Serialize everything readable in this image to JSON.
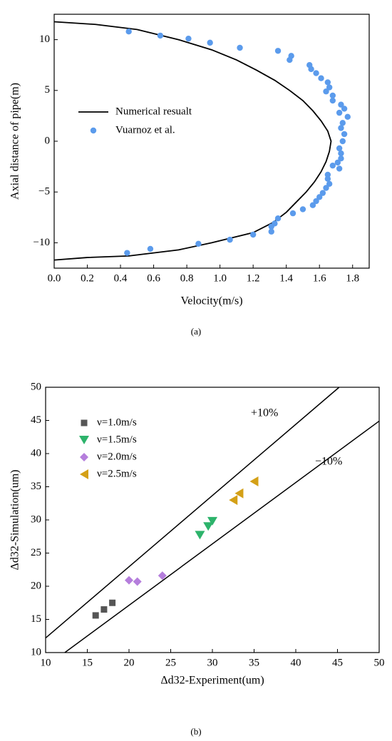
{
  "chart_data": [
    {
      "type": "scatter",
      "xlabel": "Velocity(m/s)",
      "ylabel": "Axial distance of pipe(m)",
      "caption": "(a)",
      "xlim": [
        0,
        1.9
      ],
      "ylim": [
        -12.5,
        12.5
      ],
      "xticks": [
        {
          "value": 0,
          "label": "0.0"
        },
        0.2,
        0.4,
        0.6,
        0.8,
        {
          "value": 1,
          "label": "1.0"
        },
        1.2,
        1.4,
        1.6,
        1.8
      ],
      "yticks": [
        {
          "value": -10,
          "label": "−10"
        },
        {
          "value": -5,
          "label": "−5"
        },
        0,
        5,
        10
      ],
      "series": [
        {
          "name": "Numerical resualt",
          "mode": "line",
          "color": "#000000",
          "x": [
            0,
            0.25,
            0.5,
            0.75,
            0.95,
            1.1,
            1.22,
            1.33,
            1.42,
            1.5,
            1.56,
            1.61,
            1.65,
            1.67,
            1.66,
            1.64,
            1.61,
            1.57,
            1.52,
            1.46,
            1.4,
            1.32,
            1.2,
            0.95,
            0.75,
            0.45,
            0.2,
            0
          ],
          "values": [
            11.76,
            11.5,
            11,
            10,
            9,
            8,
            7,
            6,
            5,
            4,
            3,
            2,
            1,
            0,
            -1,
            -2,
            -3,
            -4,
            -5,
            -6,
            -7,
            -8,
            -9,
            -10,
            -10.7,
            -11.3,
            -11.45,
            -11.7
          ]
        },
        {
          "name": "Vuarnoz et al.",
          "mode": "markers",
          "marker": "circle",
          "color": "#5b9bec",
          "x": [
            0.45,
            0.64,
            0.81,
            0.94,
            1.12,
            1.35,
            1.43,
            1.42,
            1.54,
            1.55,
            1.58,
            1.61,
            1.65,
            1.66,
            1.64,
            1.68,
            1.68,
            1.73,
            1.75,
            1.72,
            1.77,
            1.74,
            1.73,
            1.75,
            1.74,
            1.72,
            1.73,
            1.73,
            1.71,
            1.68,
            1.72,
            1.65,
            1.65,
            1.66,
            1.64,
            1.62,
            1.6,
            1.58,
            1.56,
            1.5,
            1.44,
            1.35,
            1.33,
            1.31,
            1.31,
            1.2,
            1.06,
            0.87,
            0.58,
            0.44
          ],
          "values": [
            10.8,
            10.4,
            10.1,
            9.7,
            9.2,
            8.9,
            8.4,
            8.0,
            7.5,
            7.1,
            6.7,
            6.2,
            5.8,
            5.3,
            4.9,
            4.5,
            4.0,
            3.6,
            3.2,
            2.8,
            2.4,
            1.8,
            1.3,
            0.7,
            0.0,
            -0.7,
            -1.2,
            -1.7,
            -2.1,
            -2.4,
            -2.7,
            -3.3,
            -3.7,
            -4.2,
            -4.6,
            -5.1,
            -5.5,
            -5.9,
            -6.3,
            -6.7,
            -7.1,
            -7.6,
            -8.1,
            -8.4,
            -8.9,
            -9.2,
            -9.7,
            -10.1,
            -10.6,
            -11.0
          ]
        }
      ]
    },
    {
      "type": "scatter",
      "xlabel": "Δd32-Experiment(um)",
      "ylabel": "Δd32-Simulation(um)",
      "caption": "(b)",
      "xlim": [
        10,
        50
      ],
      "ylim": [
        10,
        50
      ],
      "xticks": [
        10,
        15,
        20,
        25,
        30,
        35,
        40,
        45,
        50
      ],
      "yticks": [
        10,
        15,
        20,
        25,
        30,
        35,
        40,
        45,
        50
      ],
      "reference_lines": [
        {
          "text": "+10%",
          "color": "#000000",
          "x": [
            10,
            45.2
          ],
          "values": [
            12.2,
            50
          ]
        },
        {
          "text": "−10%",
          "color": "#000000",
          "x": [
            12.3,
            50
          ],
          "values": [
            10,
            44.9
          ]
        }
      ],
      "series": [
        {
          "name": "ν=1.0m/s",
          "mode": "markers",
          "marker": "square",
          "color": "#555555",
          "x": [
            16,
            17,
            18
          ],
          "values": [
            15.6,
            16.5,
            17.5
          ]
        },
        {
          "name": "ν=1.5m/s",
          "mode": "markers",
          "marker": "triangle-down",
          "color": "#2db36b",
          "x": [
            28.5,
            29.5,
            30
          ],
          "values": [
            27.7,
            29,
            29.8
          ]
        },
        {
          "name": "ν=2.0m/s",
          "mode": "markers",
          "marker": "diamond",
          "color": "#b57edc",
          "x": [
            20,
            21,
            24
          ],
          "values": [
            20.9,
            20.7,
            21.6
          ]
        },
        {
          "name": "ν=2.5m/s",
          "mode": "markers",
          "marker": "triangle-left",
          "color": "#d4a017",
          "x": [
            32.5,
            33.2,
            35
          ],
          "values": [
            33,
            34,
            35.8
          ]
        }
      ]
    }
  ]
}
